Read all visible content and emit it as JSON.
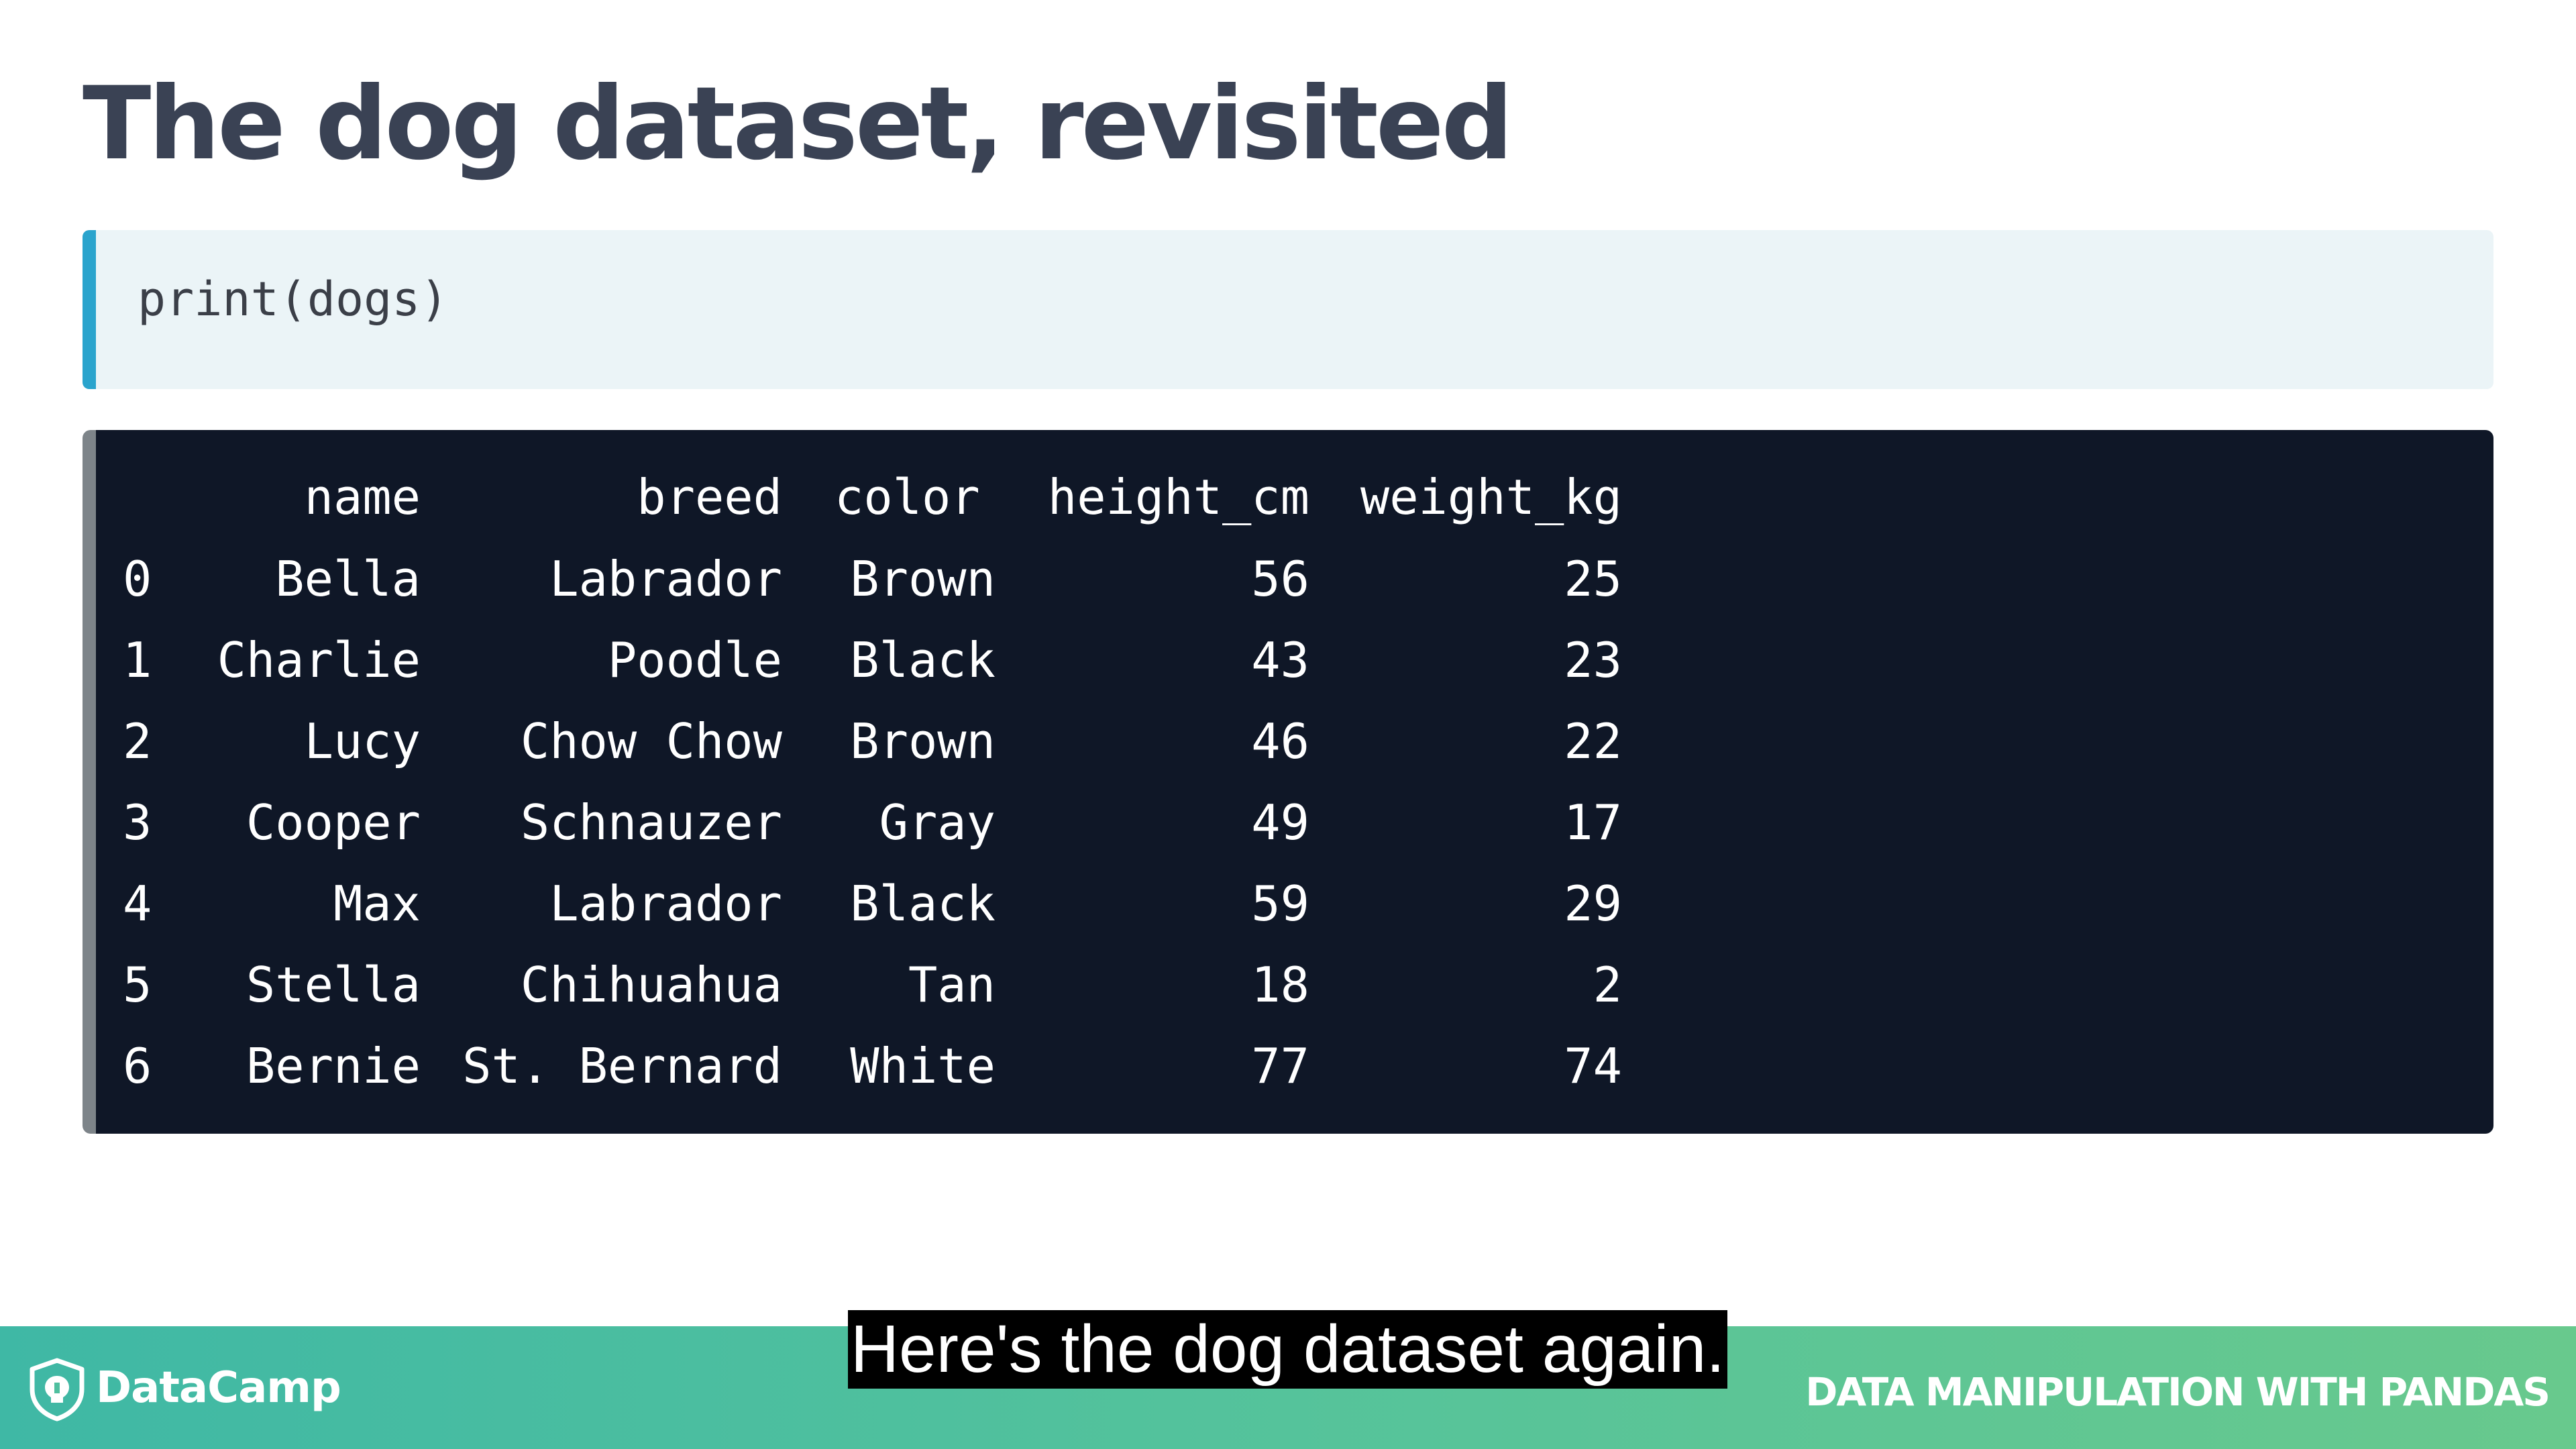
{
  "slide": {
    "title": "The dog dataset, revisited"
  },
  "code": {
    "line": "print(dogs)"
  },
  "table": {
    "columns": [
      "name",
      "breed",
      "color",
      "height_cm",
      "weight_kg"
    ],
    "rows": [
      {
        "index": "0",
        "name": "Bella",
        "breed": "Labrador",
        "color": "Brown",
        "height_cm": "56",
        "weight_kg": "25"
      },
      {
        "index": "1",
        "name": "Charlie",
        "breed": "Poodle",
        "color": "Black",
        "height_cm": "43",
        "weight_kg": "23"
      },
      {
        "index": "2",
        "name": "Lucy",
        "breed": "Chow Chow",
        "color": "Brown",
        "height_cm": "46",
        "weight_kg": "22"
      },
      {
        "index": "3",
        "name": "Cooper",
        "breed": "Schnauzer",
        "color": "Gray",
        "height_cm": "49",
        "weight_kg": "17"
      },
      {
        "index": "4",
        "name": "Max",
        "breed": "Labrador",
        "color": "Black",
        "height_cm": "59",
        "weight_kg": "29"
      },
      {
        "index": "5",
        "name": "Stella",
        "breed": "Chihuahua",
        "color": "Tan",
        "height_cm": "18",
        "weight_kg": "2"
      },
      {
        "index": "6",
        "name": "Bernie",
        "breed": "St. Bernard",
        "color": "White",
        "height_cm": "77",
        "weight_kg": "74"
      }
    ]
  },
  "footer": {
    "logo_text": "DataCamp",
    "logo_icon": "datacamp-shield-icon",
    "course_name": "DATA MANIPULATION WITH PANDAS"
  },
  "caption": {
    "text": "Here's the dog dataset again."
  },
  "colors": {
    "title": "#3a4254",
    "code_bg": "#ebf4f7",
    "code_accent": "#2aa4cd",
    "output_bg": "#0f1727",
    "footer_start": "#3fb8a5",
    "footer_end": "#68c98d"
  }
}
